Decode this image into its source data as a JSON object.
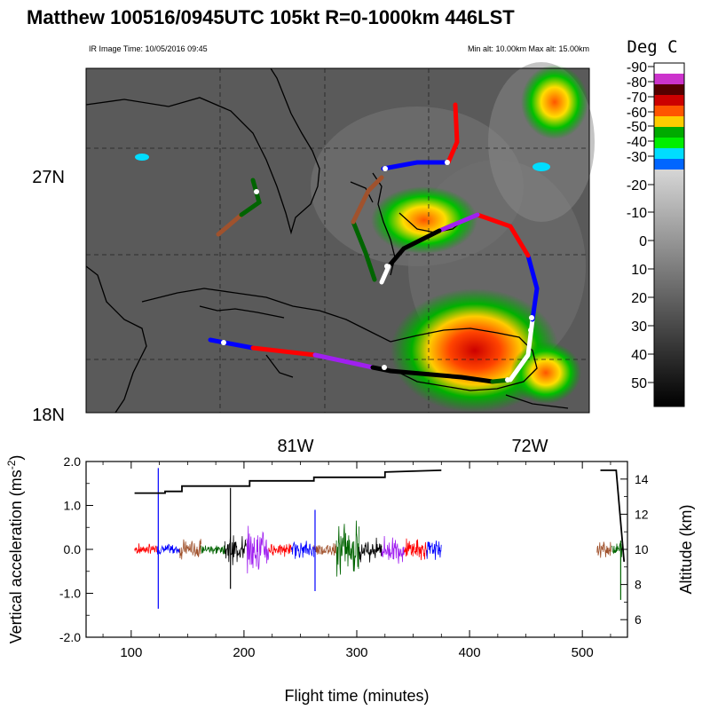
{
  "header": {
    "title": "Matthew 100516/0945UTC 105kt  R=0-1000km 446LST",
    "image_time": "IR Image Time: 10/05/2016 09:45",
    "alt_range": "Min alt: 10.00km  Max alt: 15.00km"
  },
  "map": {
    "lat_labels": [
      "27N",
      "18N"
    ],
    "lon_labels": [
      "81W",
      "72W"
    ]
  },
  "colorbar": {
    "title": "Deg C",
    "labels": [
      "-90",
      "-80",
      "-70",
      "-60",
      "-50",
      "-40",
      "-30",
      "-20",
      "-10",
      "0",
      "10",
      "20",
      "30",
      "40",
      "50"
    ],
    "colors": {
      "warm": "#000000",
      "cold": "#ffffff",
      "enhanced": [
        "#ffffff",
        "#cc33cc",
        "#550000",
        "#cc0000",
        "#ff5500",
        "#ffcc00",
        "#00aa00",
        "#00ee00",
        "#00ddff",
        "#0066ff"
      ]
    }
  },
  "chart_data": {
    "type": "line",
    "title": "",
    "xlabel": "Flight time (minutes)",
    "ylabel": "Vertical acceleration (ms-2)",
    "ylabel_right": "Altitude (km)",
    "xlim": [
      60,
      540
    ],
    "ylim": [
      -2.0,
      2.0
    ],
    "ylim_right": [
      5,
      15
    ],
    "x_ticks": [
      "100",
      "200",
      "300",
      "400",
      "500"
    ],
    "y_ticks": [
      "2.0",
      "1.0",
      "0.0",
      "-1.0",
      "-2.0"
    ],
    "y_ticks_right": [
      "14",
      "12",
      "10",
      "8",
      "6"
    ],
    "segment_colors": [
      "#ff0000",
      "#0000ff",
      "#a0522d",
      "#006400",
      "#000000",
      "#a020f0"
    ],
    "segment_breaks_minutes": [
      103,
      123,
      143,
      162,
      183,
      202,
      222,
      242,
      262,
      282,
      302,
      322,
      342,
      362,
      375
    ],
    "late_segments": [
      [
        513,
        526
      ],
      [
        526,
        536
      ]
    ],
    "spikes": [
      {
        "x": 124,
        "ymax": 1.85,
        "ymin": -1.35
      },
      {
        "x": 188,
        "ymax": 1.4,
        "ymin": -0.9
      },
      {
        "x": 263,
        "ymax": 0.9,
        "ymin": -0.95
      },
      {
        "x": 534,
        "ymax": 0.2,
        "ymin": -1.15
      }
    ],
    "altitude_series": {
      "x": [
        103,
        130,
        130,
        145,
        145,
        205,
        205,
        262,
        262,
        325,
        325,
        375,
        516,
        530,
        537
      ],
      "y": [
        13.2,
        13.2,
        13.3,
        13.3,
        13.6,
        13.6,
        13.9,
        13.9,
        14.1,
        14.1,
        14.4,
        14.5,
        14.5,
        14.5,
        9.3
      ]
    }
  }
}
